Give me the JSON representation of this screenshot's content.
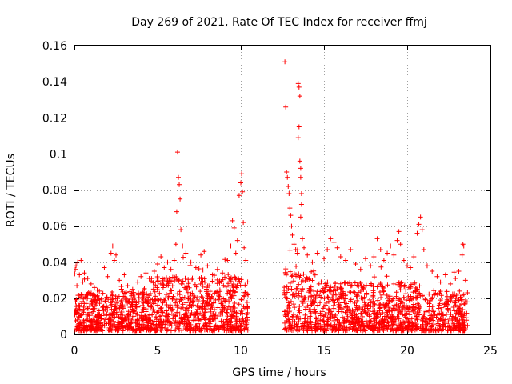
{
  "chart_data": {
    "type": "scatter",
    "title": "Day 269 of 2021, Rate Of TEC Index for receiver ffmj",
    "xlabel": "GPS time / hours",
    "ylabel": "ROTI / TECUs",
    "xlim": [
      0,
      25
    ],
    "ylim": [
      0,
      0.16
    ],
    "xticks": [
      0,
      5,
      10,
      15,
      20,
      25
    ],
    "yticks": [
      0,
      0.02,
      0.04,
      0.06,
      0.08,
      0.1,
      0.12,
      0.14,
      0.16
    ],
    "ytick_labels": [
      "0",
      "0.02",
      "0.04",
      "0.06",
      "0.08",
      "0.1",
      "0.12",
      "0.14",
      "0.16"
    ],
    "xtick_labels": [
      "0",
      "5",
      "10",
      "15",
      "20",
      "25"
    ],
    "grid": true,
    "marker": "+",
    "color": "#ff0000",
    "data_gaps_hours": [
      [
        10.45,
        12.6
      ]
    ],
    "series": [
      {
        "name": "ROTI",
        "points": [
          [
            0.05,
            0.036
          ],
          [
            0.1,
            0.038
          ],
          [
            0.15,
            0.027
          ],
          [
            0.2,
            0.04
          ],
          [
            0.3,
            0.033
          ],
          [
            0.4,
            0.041
          ],
          [
            0.5,
            0.029
          ],
          [
            0.6,
            0.034
          ],
          [
            0.8,
            0.031
          ],
          [
            1.0,
            0.028
          ],
          [
            1.2,
            0.026
          ],
          [
            1.5,
            0.024
          ],
          [
            1.8,
            0.037
          ],
          [
            2.0,
            0.032
          ],
          [
            2.2,
            0.045
          ],
          [
            2.3,
            0.049
          ],
          [
            2.4,
            0.041
          ],
          [
            2.5,
            0.044
          ],
          [
            2.7,
            0.03
          ],
          [
            3.0,
            0.033
          ],
          [
            3.2,
            0.027
          ],
          [
            3.5,
            0.025
          ],
          [
            3.8,
            0.029
          ],
          [
            4.0,
            0.032
          ],
          [
            4.3,
            0.034
          ],
          [
            4.5,
            0.031
          ],
          [
            4.8,
            0.035
          ],
          [
            5.0,
            0.039
          ],
          [
            5.2,
            0.043
          ],
          [
            5.4,
            0.037
          ],
          [
            5.6,
            0.04
          ],
          [
            5.8,
            0.036
          ],
          [
            6.0,
            0.041
          ],
          [
            6.1,
            0.05
          ],
          [
            6.15,
            0.068
          ],
          [
            6.2,
            0.101
          ],
          [
            6.25,
            0.087
          ],
          [
            6.3,
            0.083
          ],
          [
            6.35,
            0.075
          ],
          [
            6.4,
            0.058
          ],
          [
            6.5,
            0.049
          ],
          [
            6.7,
            0.045
          ],
          [
            7.0,
            0.04
          ],
          [
            7.3,
            0.037
          ],
          [
            7.6,
            0.044
          ],
          [
            7.8,
            0.046
          ],
          [
            8.0,
            0.038
          ],
          [
            8.3,
            0.033
          ],
          [
            8.6,
            0.036
          ],
          [
            8.9,
            0.034
          ],
          [
            9.2,
            0.041
          ],
          [
            9.4,
            0.049
          ],
          [
            9.5,
            0.063
          ],
          [
            9.6,
            0.059
          ],
          [
            9.7,
            0.045
          ],
          [
            9.8,
            0.052
          ],
          [
            9.9,
            0.077
          ],
          [
            10.0,
            0.084
          ],
          [
            10.05,
            0.089
          ],
          [
            10.1,
            0.079
          ],
          [
            10.15,
            0.062
          ],
          [
            10.2,
            0.048
          ],
          [
            10.3,
            0.041
          ],
          [
            12.65,
            0.151
          ],
          [
            12.7,
            0.126
          ],
          [
            12.75,
            0.09
          ],
          [
            12.8,
            0.087
          ],
          [
            12.85,
            0.082
          ],
          [
            12.9,
            0.078
          ],
          [
            12.95,
            0.07
          ],
          [
            13.0,
            0.066
          ],
          [
            13.05,
            0.06
          ],
          [
            13.1,
            0.055
          ],
          [
            13.2,
            0.05
          ],
          [
            13.3,
            0.047
          ],
          [
            13.4,
            0.045
          ],
          [
            13.45,
            0.139
          ],
          [
            13.5,
            0.137
          ],
          [
            13.55,
            0.132
          ],
          [
            13.5,
            0.115
          ],
          [
            13.45,
            0.109
          ],
          [
            13.55,
            0.096
          ],
          [
            13.6,
            0.092
          ],
          [
            13.6,
            0.087
          ],
          [
            13.65,
            0.078
          ],
          [
            13.65,
            0.072
          ],
          [
            13.6,
            0.065
          ],
          [
            13.7,
            0.053
          ],
          [
            13.8,
            0.048
          ],
          [
            14.0,
            0.044
          ],
          [
            14.3,
            0.04
          ],
          [
            14.6,
            0.045
          ],
          [
            15.0,
            0.042
          ],
          [
            15.2,
            0.047
          ],
          [
            15.4,
            0.053
          ],
          [
            15.6,
            0.051
          ],
          [
            15.8,
            0.048
          ],
          [
            16.0,
            0.043
          ],
          [
            16.3,
            0.041
          ],
          [
            16.6,
            0.047
          ],
          [
            16.9,
            0.039
          ],
          [
            17.2,
            0.036
          ],
          [
            17.5,
            0.042
          ],
          [
            17.8,
            0.038
          ],
          [
            18.0,
            0.043
          ],
          [
            18.2,
            0.053
          ],
          [
            18.4,
            0.047
          ],
          [
            18.6,
            0.041
          ],
          [
            18.8,
            0.045
          ],
          [
            19.0,
            0.049
          ],
          [
            19.2,
            0.044
          ],
          [
            19.4,
            0.052
          ],
          [
            19.5,
            0.057
          ],
          [
            19.6,
            0.05
          ],
          [
            19.8,
            0.041
          ],
          [
            20.0,
            0.038
          ],
          [
            20.2,
            0.037
          ],
          [
            20.4,
            0.043
          ],
          [
            20.6,
            0.056
          ],
          [
            20.7,
            0.061
          ],
          [
            20.8,
            0.065
          ],
          [
            20.9,
            0.058
          ],
          [
            21.0,
            0.047
          ],
          [
            21.2,
            0.038
          ],
          [
            21.5,
            0.035
          ],
          [
            21.8,
            0.032
          ],
          [
            22.0,
            0.029
          ],
          [
            22.3,
            0.033
          ],
          [
            22.6,
            0.028
          ],
          [
            22.9,
            0.031
          ],
          [
            23.1,
            0.035
          ],
          [
            23.3,
            0.044
          ],
          [
            23.35,
            0.05
          ],
          [
            23.4,
            0.049
          ],
          [
            23.5,
            0.03
          ],
          [
            23.6,
            0.018
          ]
        ]
      }
    ]
  }
}
